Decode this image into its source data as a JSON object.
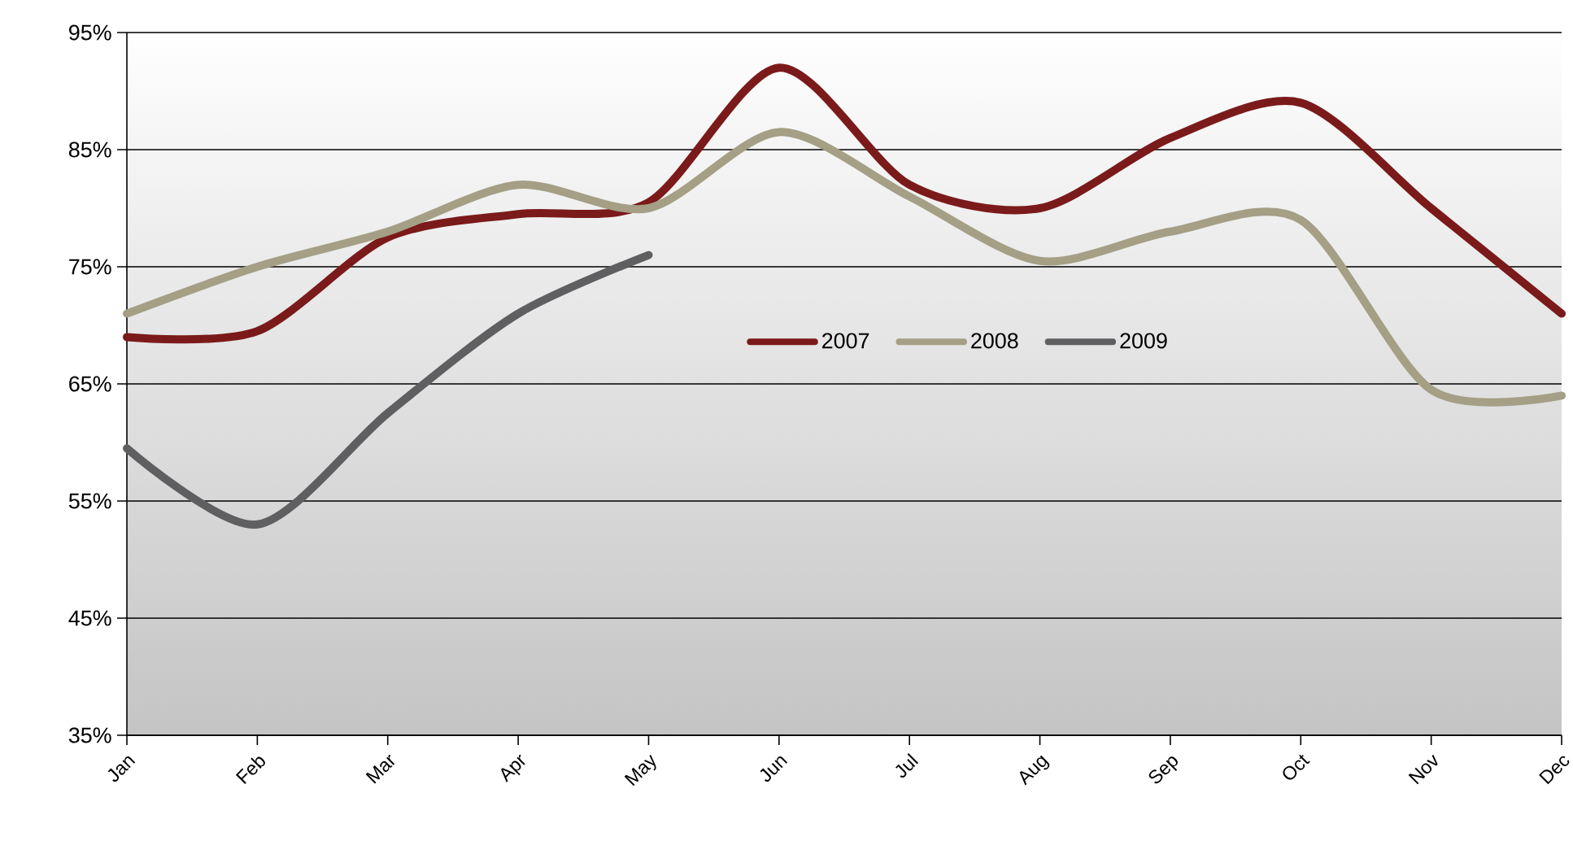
{
  "chart_data": {
    "type": "line",
    "categories": [
      "Jan",
      "Feb",
      "Mar",
      "Apr",
      "May",
      "Jun",
      "Jul",
      "Aug",
      "Sep",
      "Oct",
      "Nov",
      "Dec"
    ],
    "series": [
      {
        "name": "2007",
        "color": "#7b1a1a",
        "values": [
          69,
          69.5,
          77.5,
          79.5,
          80.5,
          92,
          82,
          80,
          86,
          89,
          80,
          71
        ]
      },
      {
        "name": "2008",
        "color": "#a49f85",
        "values": [
          71,
          75,
          78,
          82,
          80,
          86.5,
          81,
          75.5,
          78,
          79,
          64.5,
          64
        ]
      },
      {
        "name": "2009",
        "color": "#5f5f61",
        "values": [
          59.5,
          53,
          62.5,
          71,
          76,
          null,
          null,
          null,
          null,
          null,
          null,
          null
        ]
      }
    ],
    "ylim": [
      35,
      95
    ],
    "yticks": [
      {
        "value": 35,
        "label": "35%"
      },
      {
        "value": 45,
        "label": "45%"
      },
      {
        "value": 55,
        "label": "55%"
      },
      {
        "value": 65,
        "label": "65%"
      },
      {
        "value": 75,
        "label": "75%"
      },
      {
        "value": 85,
        "label": "85%"
      },
      {
        "value": 95,
        "label": "95%"
      }
    ],
    "grid": "y",
    "legend": "center",
    "marker": "none",
    "line_style": "solid"
  }
}
